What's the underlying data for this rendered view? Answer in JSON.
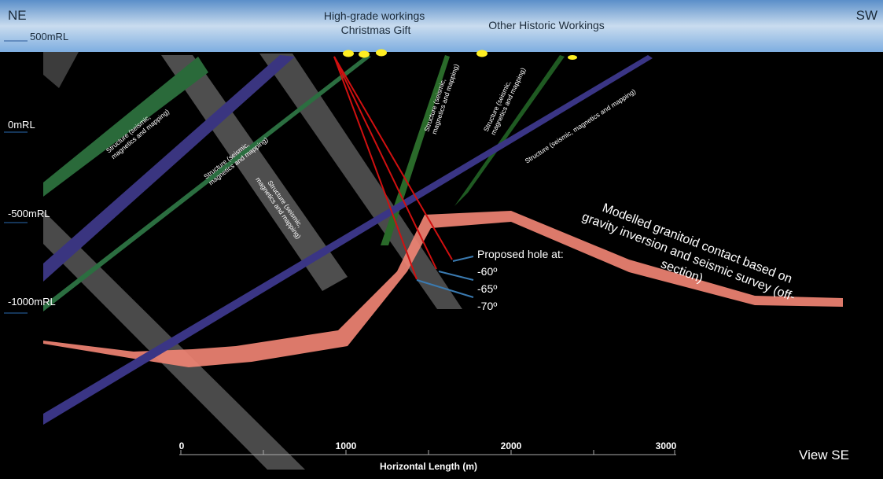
{
  "header": {
    "left": "NE",
    "right": "SW",
    "view": "View SE"
  },
  "levels": [
    "500mRL",
    "0mRL",
    "-500mRL",
    "-1000mRL"
  ],
  "workings": {
    "high_grade": [
      "High-grade workings",
      "Christmas Gift"
    ],
    "other": "Other Historic Workings"
  },
  "structures": [
    [
      "Structure (seismic,",
      "magnetics and mapping)"
    ],
    [
      "Structure (seismic,",
      "magnetics and mapping)"
    ],
    [
      "Structure (seismic,",
      "magnetics and mapping)"
    ],
    [
      "Structure (seismic,",
      "magnetics and mapping)"
    ],
    [
      "Structure (seismic,",
      "magnetics and mapping)"
    ],
    [
      "Structure (seismic, magnetics and mapping)"
    ]
  ],
  "granitoid": [
    "Modelled granitoid contact based on",
    "gravity inversion and seismic survey (off-",
    "section)"
  ],
  "holes": {
    "title": "Proposed hole at:",
    "angles": [
      "-60º",
      "-65º",
      "-70º"
    ]
  },
  "scale": {
    "ticks": [
      "0",
      "1000",
      "2000",
      "3000"
    ],
    "title": "Horizontal Length (m)"
  }
}
